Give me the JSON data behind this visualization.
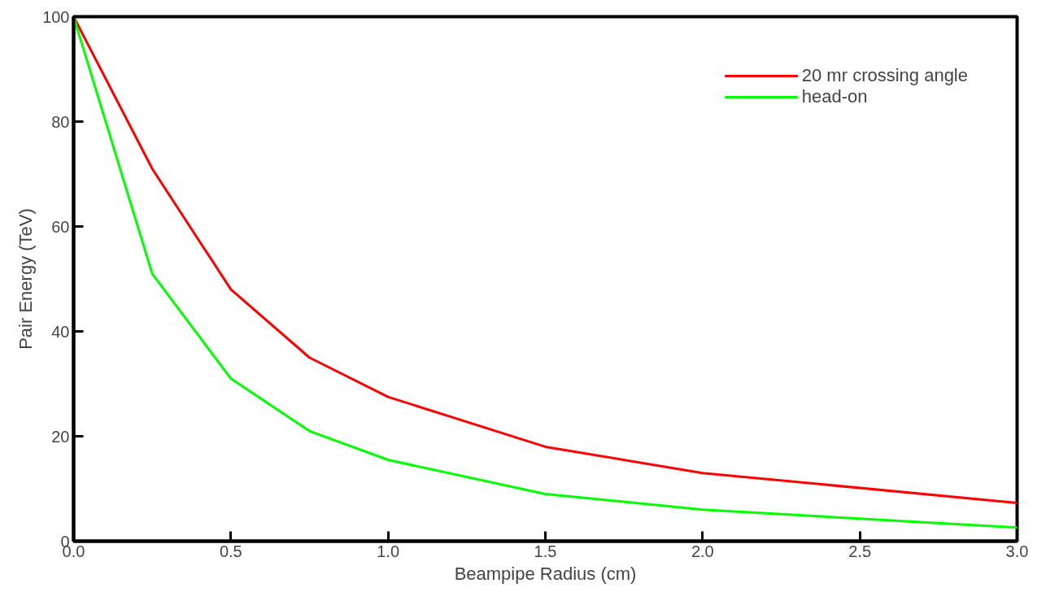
{
  "chart_data": {
    "type": "line",
    "xlabel": "Beampipe Radius (cm)",
    "ylabel": "Pair Energy (TeV)",
    "x": [
      0,
      0.25,
      0.5,
      0.75,
      1.0,
      1.5,
      2.0,
      3.0
    ],
    "series": [
      {
        "name": "20 mr crossing angle",
        "color": "#ff0000",
        "values": [
          100,
          71,
          48,
          35,
          27.5,
          18,
          13,
          7.3
        ]
      },
      {
        "name": "head-on",
        "color": "#00ff00",
        "values": [
          100,
          51,
          31,
          21,
          15.5,
          9,
          6,
          2.6
        ]
      }
    ],
    "xlim": [
      0,
      3
    ],
    "ylim": [
      0,
      100
    ],
    "xticks": [
      {
        "value": 0,
        "label": "0.0"
      },
      {
        "value": 0.5,
        "label": "0.5"
      },
      {
        "value": 1,
        "label": "1.0"
      },
      {
        "value": 1.5,
        "label": "1.5"
      },
      {
        "value": 2,
        "label": "2.0"
      },
      {
        "value": 2.5,
        "label": "2.5"
      },
      {
        "value": 3,
        "label": "3.0"
      }
    ],
    "yticks": [
      0,
      20,
      40,
      60,
      80,
      100
    ],
    "grid": false,
    "legend": "top right",
    "marker": "none",
    "line_style": "solid"
  }
}
